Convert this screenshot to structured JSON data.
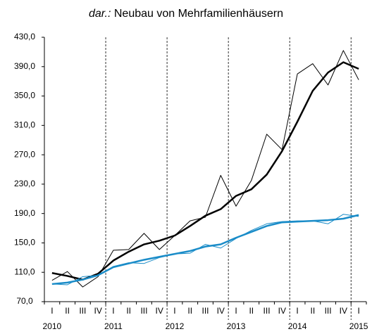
{
  "chart_data": {
    "type": "line",
    "title_prefix": "dar.:",
    "title": "Neubau von Mehrfamilienhäusern",
    "categories": [
      "I",
      "II",
      "III",
      "IV",
      "I",
      "II",
      "III",
      "IV",
      "I",
      "II",
      "III",
      "IV",
      "I",
      "II",
      "III",
      "IV",
      "I",
      "II",
      "III",
      "IV",
      "I"
    ],
    "years": [
      "2010",
      "2011",
      "2012",
      "2013",
      "2014",
      "2015"
    ],
    "series": [
      {
        "color": "#000000",
        "width": 1,
        "values": [
          99,
          111,
          90,
          104,
          140,
          141,
          163,
          141,
          160,
          180,
          185,
          242,
          200,
          235,
          298,
          277,
          380,
          394,
          365,
          412,
          372
        ]
      },
      {
        "color": "#000000",
        "width": 2.5,
        "values": [
          109,
          105,
          100,
          108,
          126,
          138,
          148,
          153,
          160,
          173,
          187,
          196,
          214,
          223,
          243,
          275,
          315,
          357,
          382,
          396,
          387
        ]
      },
      {
        "color": "#1a8cc8",
        "width": 1,
        "values": [
          94,
          93,
          104,
          106,
          118,
          123,
          122,
          130,
          135,
          136,
          148,
          143,
          156,
          167,
          176,
          179,
          180,
          180,
          176,
          189,
          186
        ]
      },
      {
        "color": "#1a8cc8",
        "width": 2.5,
        "values": [
          94,
          96,
          100,
          106,
          117,
          122,
          127,
          131,
          135,
          139,
          145,
          148,
          157,
          165,
          173,
          178,
          179,
          180,
          181,
          183,
          188
        ]
      }
    ],
    "ylim": [
      70,
      430
    ],
    "yticks": [
      {
        "value": 70,
        "label": "70,0"
      },
      {
        "value": 110,
        "label": "110,0"
      },
      {
        "value": 150,
        "label": "150,0"
      },
      {
        "value": 190,
        "label": "190,0"
      },
      {
        "value": 230,
        "label": "230,0"
      },
      {
        "value": 270,
        "label": "270,0"
      },
      {
        "value": 310,
        "label": "310,0"
      },
      {
        "value": 350,
        "label": "350,0"
      },
      {
        "value": 390,
        "label": "390,0"
      },
      {
        "value": 430,
        "label": "430,0"
      }
    ],
    "year_dividers": true
  }
}
